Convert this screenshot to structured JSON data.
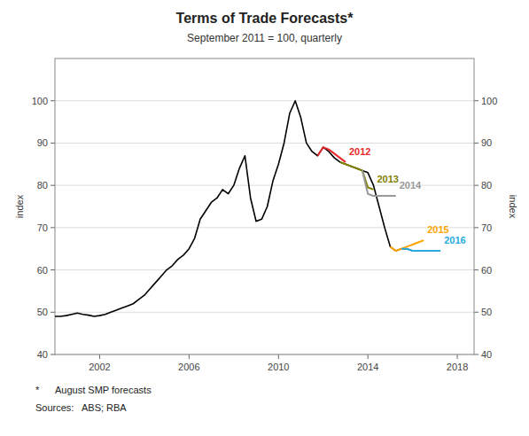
{
  "chart_data": {
    "type": "line",
    "title": "Terms of Trade Forecasts*",
    "subtitle": "September 2011 = 100, quarterly",
    "ylabel": "index",
    "y2label": "index",
    "annotations": [
      "*      August SMP forecasts",
      "Sources:   ABS; RBA"
    ],
    "xlim": [
      2000.0,
      2018.75
    ],
    "xticks": [
      2002,
      2006,
      2010,
      2014,
      2018
    ],
    "ylim": [
      40,
      110
    ],
    "yticks": [
      40,
      50,
      60,
      70,
      80,
      90,
      100
    ],
    "y2lim": [
      40,
      110
    ],
    "y2ticks": [
      40,
      50,
      60,
      70,
      80,
      90,
      100
    ],
    "grid": true,
    "series": [
      {
        "color": "#000000",
        "x": [
          2000.0,
          2000.25,
          2000.5,
          2000.75,
          2001.0,
          2001.25,
          2001.5,
          2001.75,
          2002.0,
          2002.25,
          2002.5,
          2002.75,
          2003.0,
          2003.25,
          2003.5,
          2003.75,
          2004.0,
          2004.25,
          2004.5,
          2004.75,
          2005.0,
          2005.25,
          2005.5,
          2005.75,
          2006.0,
          2006.25,
          2006.5,
          2006.75,
          2007.0,
          2007.25,
          2007.5,
          2007.75,
          2008.0,
          2008.25,
          2008.5,
          2008.75,
          2009.0,
          2009.25,
          2009.5,
          2009.75,
          2010.0,
          2010.25,
          2010.5,
          2010.75,
          2011.0,
          2011.25,
          2011.5,
          2011.75,
          2012.0,
          2012.25,
          2012.5,
          2012.75,
          2013.0,
          2013.25,
          2013.5,
          2013.75,
          2014.0,
          2014.25,
          2014.5,
          2014.75,
          2015.0,
          2015.25,
          2015.5,
          2015.75,
          2016.0
        ],
        "values": [
          49.0,
          49.0,
          49.2,
          49.5,
          49.8,
          49.5,
          49.3,
          49.0,
          49.2,
          49.5,
          50.0,
          50.5,
          51.0,
          51.5,
          52.0,
          53.0,
          54.0,
          55.5,
          57.0,
          58.5,
          60.0,
          61.0,
          62.5,
          63.5,
          65.0,
          67.5,
          72.0,
          74.0,
          76.0,
          77.0,
          79.0,
          78.0,
          80.0,
          84.0,
          87.0,
          77.0,
          71.5,
          72.0,
          75.0,
          81.0,
          85.0,
          90.0,
          97.0,
          100.0,
          96.0,
          90.0,
          88.0,
          87.0,
          89.0,
          88.0,
          86.5,
          85.5,
          85.0,
          84.5,
          84.0,
          83.5,
          83.0,
          80.0,
          75.0,
          70.0,
          65.5,
          64.5,
          65.0,
          65.0,
          64.5
        ]
      },
      {
        "name": "2012",
        "color": "#e8282a",
        "x": [
          2011.75,
          2012.0,
          2012.25,
          2012.5,
          2012.75,
          2013.0
        ],
        "values": [
          87.0,
          89.0,
          88.5,
          87.5,
          86.5,
          85.5
        ]
      },
      {
        "name": "2013",
        "color": "#808000",
        "x": [
          2012.75,
          2013.0,
          2013.25,
          2013.5,
          2013.75,
          2014.0,
          2014.25
        ],
        "values": [
          85.5,
          85.0,
          84.5,
          84.0,
          83.5,
          79.5,
          79.0
        ]
      },
      {
        "name": "2014",
        "color": "#999999",
        "x": [
          2013.75,
          2014.0,
          2014.25,
          2014.5,
          2014.75,
          2015.0,
          2015.25
        ],
        "values": [
          83.5,
          78.0,
          77.5,
          77.5,
          77.5,
          77.5,
          77.5
        ]
      },
      {
        "name": "2015",
        "color": "#ffa500",
        "x": [
          2015.0,
          2015.25,
          2015.5,
          2015.75,
          2016.0,
          2016.25,
          2016.5
        ],
        "values": [
          65.5,
          64.5,
          65.0,
          65.5,
          66.0,
          66.5,
          67.0
        ]
      },
      {
        "name": "2016",
        "color": "#29abe2",
        "x": [
          2015.5,
          2015.75,
          2016.0,
          2016.25,
          2016.5,
          2016.75,
          2017.0,
          2017.25
        ],
        "values": [
          65.0,
          65.0,
          64.5,
          64.5,
          64.5,
          64.5,
          64.5,
          64.5
        ]
      }
    ]
  }
}
